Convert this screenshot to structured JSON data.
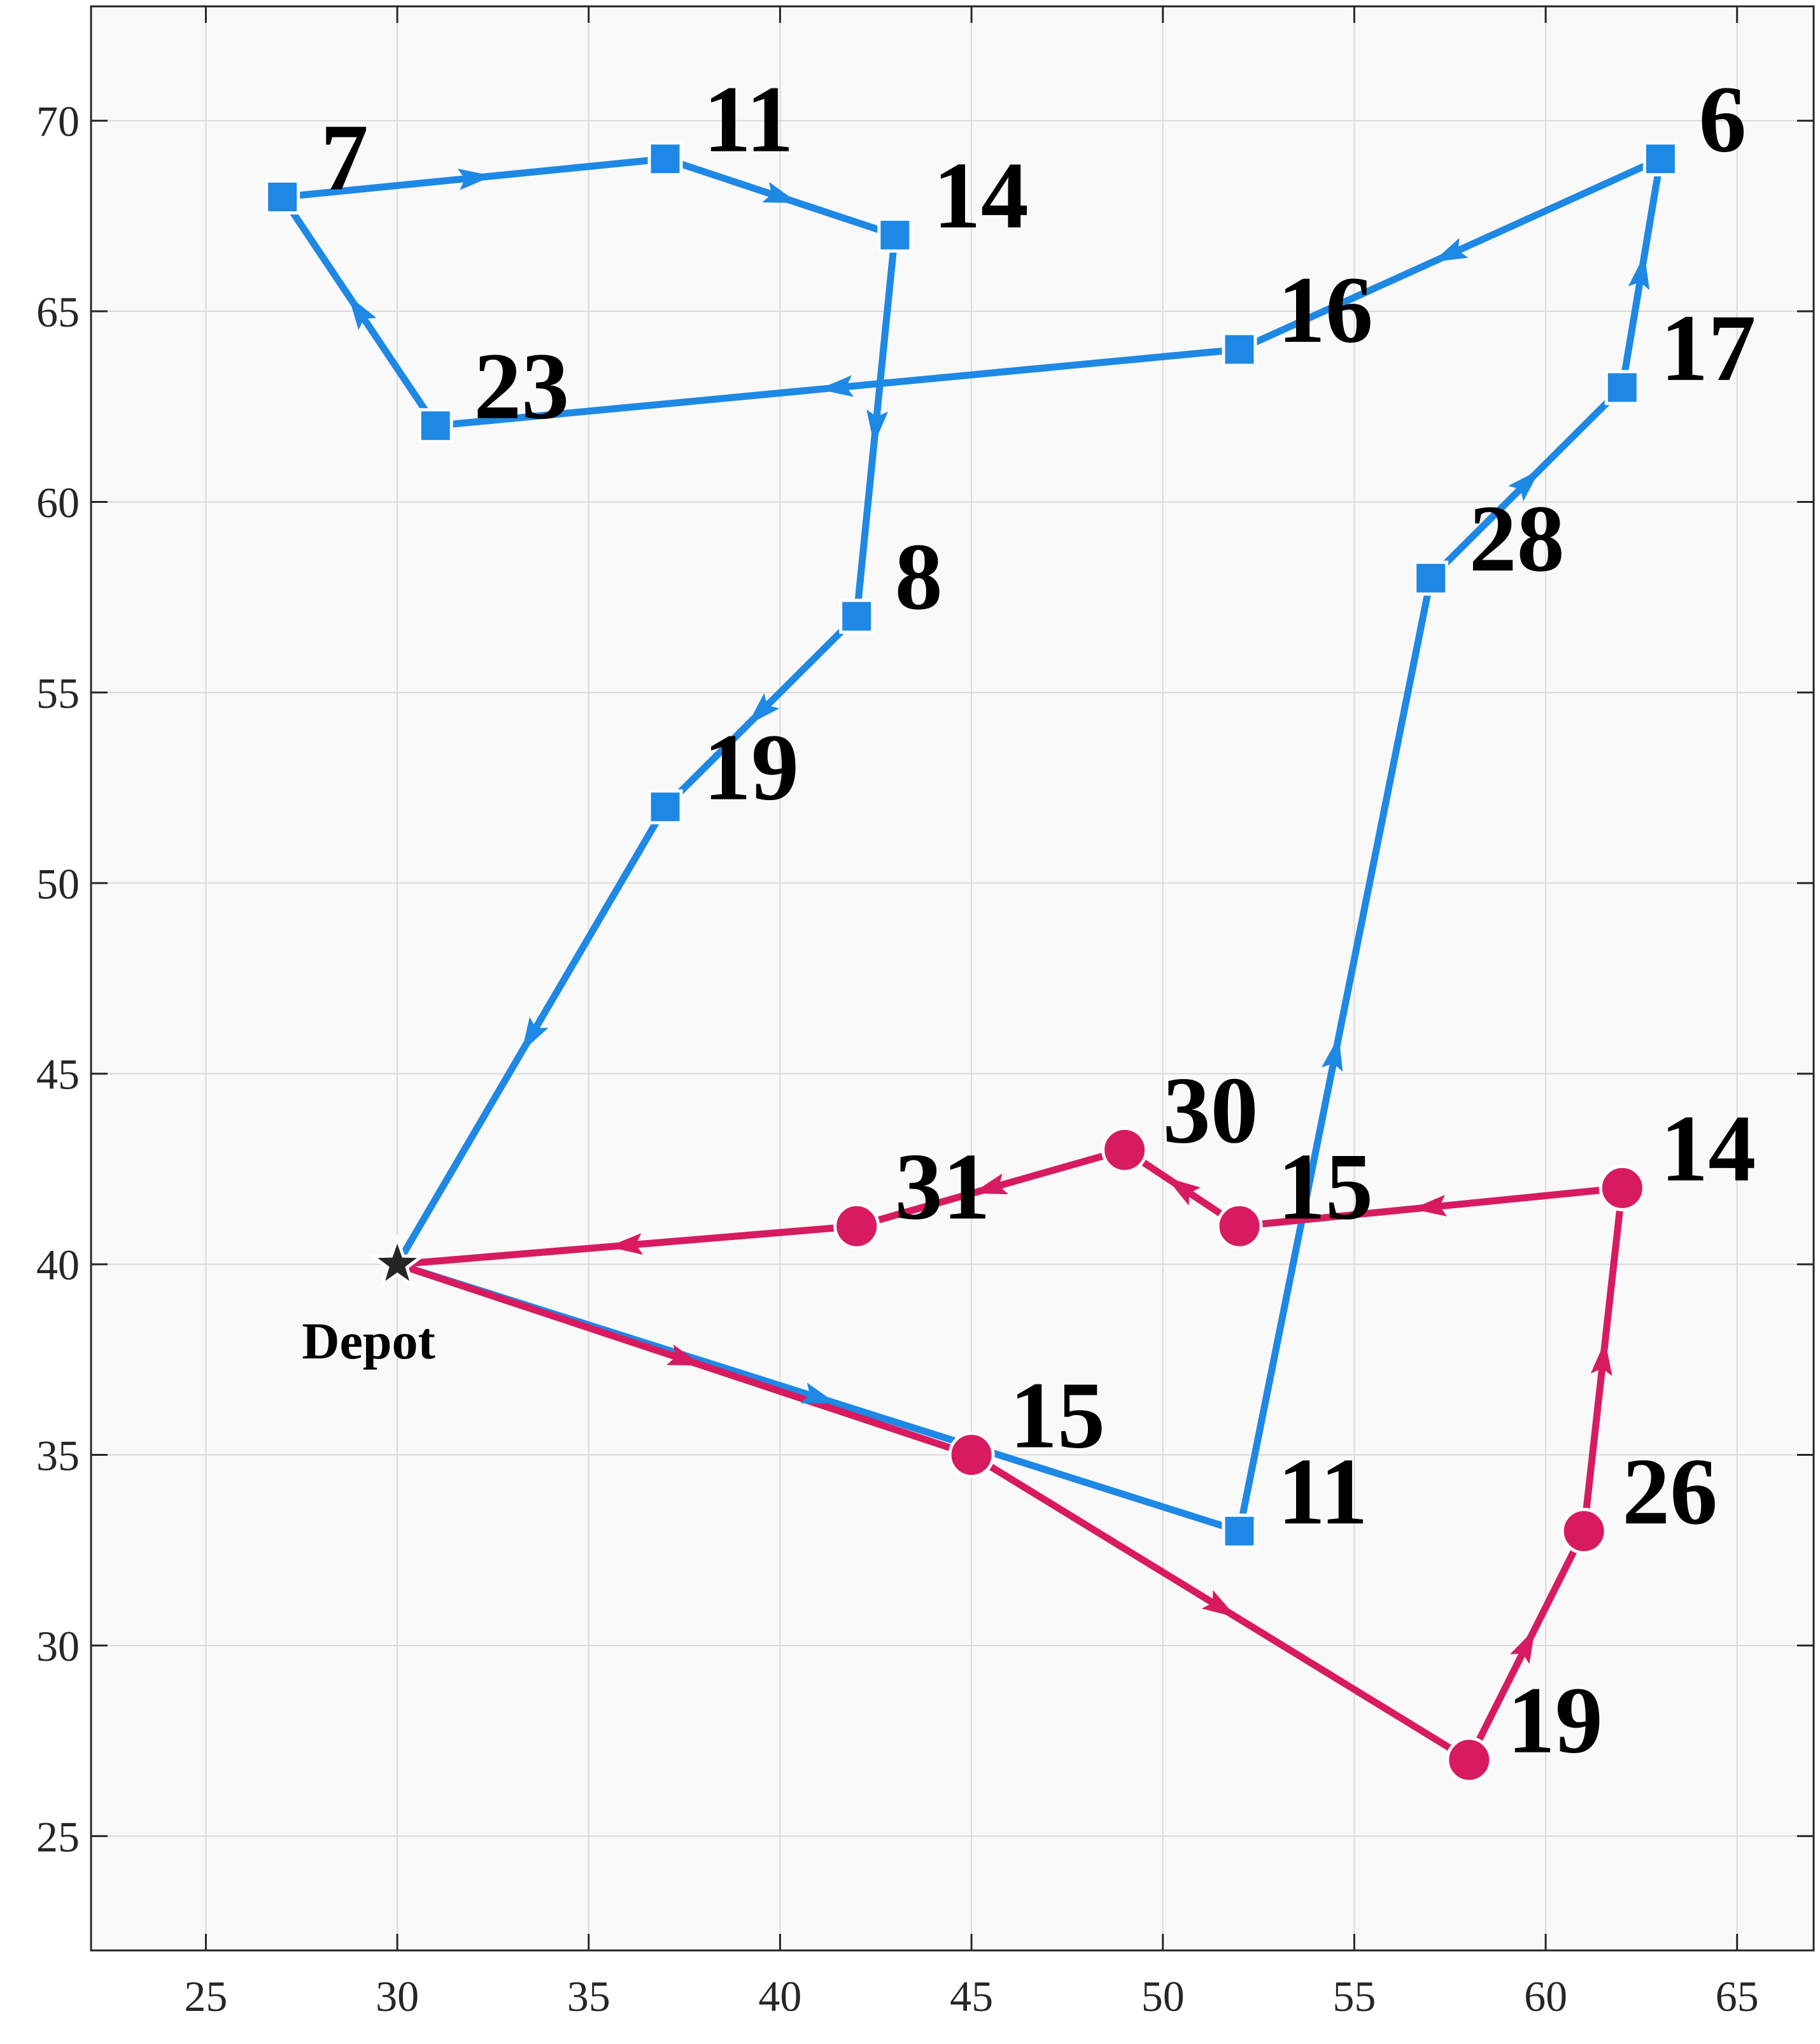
{
  "chart_data": {
    "type": "line",
    "title": "",
    "xlabel": "",
    "ylabel": "",
    "xlim": [
      22,
      67
    ],
    "ylim": [
      22,
      73
    ],
    "xticks": [
      25,
      30,
      35,
      40,
      45,
      50,
      55,
      60,
      65
    ],
    "yticks": [
      25,
      30,
      35,
      40,
      45,
      50,
      55,
      60,
      65,
      70
    ],
    "grid": true,
    "depot": {
      "x": 30,
      "y": 40,
      "label": "Depot"
    },
    "series": [
      {
        "marker": "square",
        "color": "#1e88e5",
        "routes": [
          [
            {
              "x": 30,
              "y": 40
            },
            {
              "x": 52,
              "y": 33,
              "label": "11"
            },
            {
              "x": 57,
              "y": 58,
              "label": "28"
            },
            {
              "x": 62,
              "y": 63,
              "label": "17"
            },
            {
              "x": 63,
              "y": 69,
              "label": "6"
            },
            {
              "x": 52,
              "y": 64,
              "label": "16"
            },
            {
              "x": 31,
              "y": 62,
              "label": "23"
            },
            {
              "x": 27,
              "y": 68,
              "label": "7"
            },
            {
              "x": 37,
              "y": 69,
              "label": "11"
            },
            {
              "x": 43,
              "y": 67,
              "label": "14"
            },
            {
              "x": 42,
              "y": 57,
              "label": "8"
            },
            {
              "x": 37,
              "y": 52,
              "label": "19"
            },
            {
              "x": 30,
              "y": 40
            }
          ]
        ]
      },
      {
        "marker": "circle",
        "color": "#d81b60",
        "routes": [
          [
            {
              "x": 30,
              "y": 40
            },
            {
              "x": 45,
              "y": 35,
              "label": "15"
            },
            {
              "x": 58,
              "y": 27,
              "label": "19"
            },
            {
              "x": 61,
              "y": 33,
              "label": "26"
            },
            {
              "x": 62,
              "y": 42,
              "label": "14"
            },
            {
              "x": 52,
              "y": 41,
              "label": "15"
            },
            {
              "x": 49,
              "y": 43,
              "label": "30"
            },
            {
              "x": 42,
              "y": 41,
              "label": "31"
            },
            {
              "x": 30,
              "y": 40
            }
          ]
        ]
      }
    ]
  }
}
